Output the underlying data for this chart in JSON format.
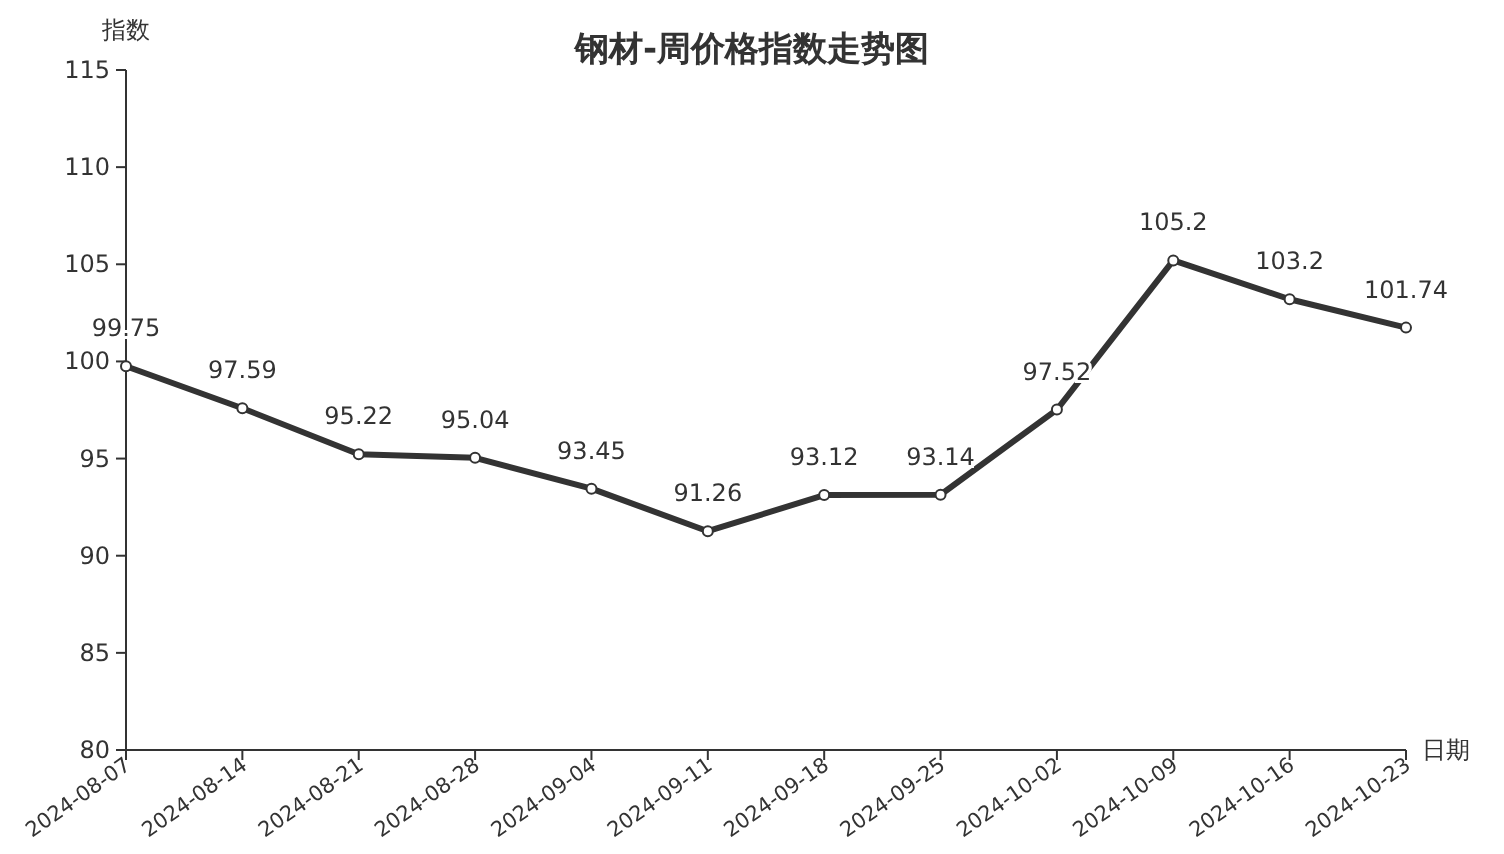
{
  "chart_data": {
    "type": "line",
    "title": "钢材-周价格指数走势图",
    "xlabel": "日期",
    "ylabel": "指数",
    "categories": [
      "2024-08-07",
      "2024-08-14",
      "2024-08-21",
      "2024-08-28",
      "2024-09-04",
      "2024-09-11",
      "2024-09-18",
      "2024-09-25",
      "2024-10-02",
      "2024-10-09",
      "2024-10-16",
      "2024-10-23"
    ],
    "values": [
      99.75,
      97.59,
      95.22,
      95.04,
      93.45,
      91.26,
      93.12,
      93.14,
      97.52,
      105.2,
      103.2,
      101.74
    ],
    "color": "#333333",
    "marker": "circle",
    "line_style": "solid",
    "data_labels": true,
    "ylim": [
      80,
      115
    ],
    "yticks": [
      80,
      85,
      90,
      95,
      100,
      105,
      110,
      115
    ]
  }
}
